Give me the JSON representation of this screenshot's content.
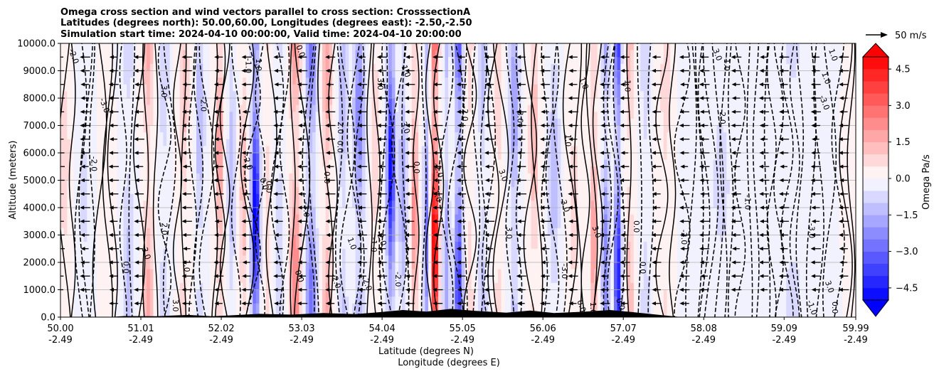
{
  "chart_data": {
    "type": "contour",
    "title_lines": [
      "Omega cross section and wind vectors parallel to cross section: CrosssectionA",
      "Latitudes (degrees north): 50.00,60.00, Longitudes (degrees east): -2.50,-2.50",
      "Simulation start time: 2024-04-10 00:00:00, Valid time: 2024-04-10 20:00:00"
    ],
    "ylabel": "Altitude (meters)",
    "xlabel_1": "Latitude (degrees N)",
    "xlabel_2": "Longitude (degrees E)",
    "x_range": [
      50.0,
      59.99
    ],
    "y_range": [
      0,
      10000
    ],
    "y_ticks": [
      "0.0",
      "1000.0",
      "2000.0",
      "3000.0",
      "4000.0",
      "5000.0",
      "6000.0",
      "7000.0",
      "8000.0",
      "9000.0",
      "10000.0"
    ],
    "x_ticks": [
      {
        "lat": "50.00",
        "lon": "-2.49"
      },
      {
        "lat": "51.01",
        "lon": "-2.49"
      },
      {
        "lat": "52.02",
        "lon": "-2.49"
      },
      {
        "lat": "53.03",
        "lon": "-2.49"
      },
      {
        "lat": "54.04",
        "lon": "-2.49"
      },
      {
        "lat": "55.05",
        "lon": "-2.49"
      },
      {
        "lat": "56.06",
        "lon": "-2.49"
      },
      {
        "lat": "57.07",
        "lon": "-2.49"
      },
      {
        "lat": "58.08",
        "lon": "-2.49"
      },
      {
        "lat": "59.09",
        "lon": "-2.49"
      },
      {
        "lat": "59.99",
        "lon": "-2.49"
      }
    ],
    "colorbar": {
      "label": "Omega Pa/s",
      "ticks": [
        "4.5",
        "3.0",
        "1.5",
        "0.0",
        "−1.5",
        "−3.0",
        "−4.5"
      ],
      "tick_values": [
        4.5,
        3.0,
        1.5,
        0.0,
        -1.5,
        -3.0,
        -4.5
      ],
      "range": [
        -5.0,
        5.0
      ],
      "extend": "both"
    },
    "quiver_key": "50 m/s",
    "contour_labels": [
      "0.0",
      "1.0",
      "-1.0",
      "2.0",
      "-2.0",
      "3.0",
      "-3.0"
    ],
    "grid": "horizontal"
  }
}
